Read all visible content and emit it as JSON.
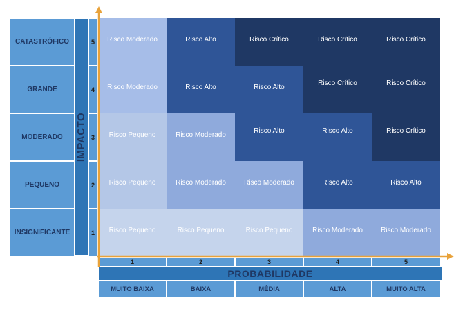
{
  "impact": {
    "title": "IMPACTO",
    "levels": [
      {
        "label": "CATASTRÓFICO",
        "num": "5"
      },
      {
        "label": "GRANDE",
        "num": "4"
      },
      {
        "label": "MODERADO",
        "num": "3"
      },
      {
        "label": "PEQUENO",
        "num": "2"
      },
      {
        "label": "INSIGNIFICANTE",
        "num": "1"
      }
    ]
  },
  "probability": {
    "title": "PROBABILIDADE",
    "levels": [
      {
        "num": "1",
        "label": "MUITO BAIXA"
      },
      {
        "num": "2",
        "label": "BAIXA"
      },
      {
        "num": "3",
        "label": "MÉDIA"
      },
      {
        "num": "4",
        "label": "ALTA"
      },
      {
        "num": "5",
        "label": "MUITO ALTA"
      }
    ]
  },
  "matrix": [
    [
      "Risco Moderado",
      "Risco Alto",
      "Risco Crítico",
      "Risco Crítico",
      "Risco Crítico"
    ],
    [
      "Risco Moderado",
      "Risco Alto",
      "Risco Alto",
      "Risco Crítico",
      "Risco Crítico"
    ],
    [
      "Risco Pequeno",
      "Risco Moderado",
      "Risco Alto",
      "Risco Alto",
      "Risco Crítico"
    ],
    [
      "Risco Pequeno",
      "Risco Moderado",
      "Risco Moderado",
      "Risco Alto",
      "Risco Alto"
    ],
    [
      "Risco Pequeno",
      "Risco Pequeno",
      "Risco Pequeno",
      "Risco Moderado",
      "Risco Moderado"
    ]
  ],
  "colors": {
    "pequeno": "#b4c7e7",
    "moderado": "#8faadc",
    "alto": "#2f5597",
    "critico": "#1f3864",
    "axis": "#e8a23a",
    "header": "#5b9bd5",
    "bar": "#2e75b6"
  }
}
